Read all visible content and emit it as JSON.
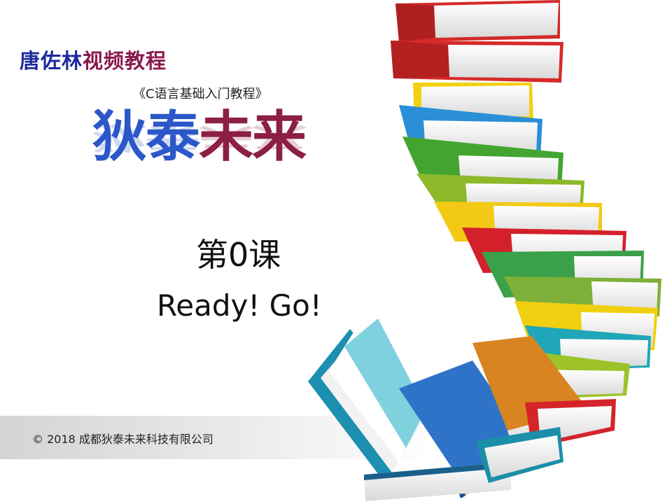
{
  "author": {
    "name_part1": "唐佐林",
    "name_part2": "视频教程"
  },
  "course_title": "《C语言基础入门教程》",
  "brand": {
    "part1": "狄泰",
    "part2": "未来"
  },
  "lesson_number": "第0课",
  "tagline": "Ready! Go!",
  "copyright": "© 2018 成都狄泰未来科技有限公司",
  "colors": {
    "author_blue": "#1d2a9c",
    "author_purple": "#8a1b4e",
    "brand_blue": "#2c57c8",
    "brand_red": "#8c1f43"
  },
  "illustration": {
    "icon": "book-stack-spiral-icon"
  }
}
